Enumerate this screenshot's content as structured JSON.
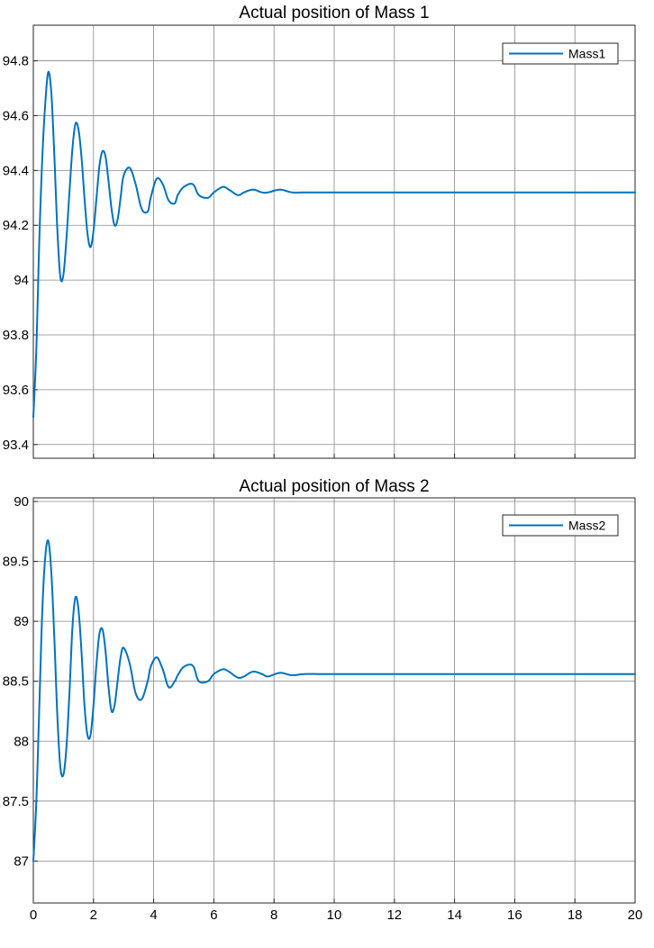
{
  "figure": {
    "background": "#ffffff",
    "axes_color": "#262626",
    "grid_color": "#888888",
    "line_color": "#0072BD"
  },
  "chart_data": [
    {
      "type": "line",
      "title": "Actual position of Mass 1",
      "xlabel": "",
      "ylabel": "",
      "xlim": [
        0,
        20
      ],
      "ylim": [
        93.35,
        94.93
      ],
      "grid": true,
      "legend_position": "top-right",
      "x_tick_labels": [],
      "y_ticks": [
        93.4,
        93.6,
        93.8,
        94,
        94.2,
        94.4,
        94.6,
        94.8
      ],
      "y_tick_labels": [
        "93.4",
        "93.6",
        "93.8",
        "94",
        "94.2",
        "94.4",
        "94.6",
        "94.8"
      ],
      "series": [
        {
          "name": "Mass1",
          "color": "#0072BD",
          "x": [
            0,
            0.1,
            0.2,
            0.3,
            0.4,
            0.5,
            0.6,
            0.7,
            0.8,
            0.9,
            1.0,
            1.1,
            1.2,
            1.3,
            1.4,
            1.5,
            1.6,
            1.7,
            1.8,
            1.9,
            2.0,
            2.1,
            2.2,
            2.3,
            2.4,
            2.5,
            2.6,
            2.7,
            2.8,
            2.9,
            3.0,
            3.2,
            3.4,
            3.6,
            3.8,
            3.9,
            4.1,
            4.3,
            4.5,
            4.7,
            4.8,
            5.0,
            5.3,
            5.5,
            5.8,
            6.0,
            6.3,
            6.5,
            6.8,
            7.0,
            7.3,
            7.6,
            7.8,
            8.2,
            8.6,
            9.0,
            9.5,
            10.0,
            10.5,
            11.0,
            12.0,
            14.0,
            16.0,
            18.0,
            20.0
          ],
          "values": [
            93.5,
            93.75,
            94.15,
            94.45,
            94.65,
            94.76,
            94.68,
            94.45,
            94.18,
            94.01,
            94.02,
            94.15,
            94.32,
            94.48,
            94.57,
            94.55,
            94.45,
            94.3,
            94.17,
            94.12,
            94.18,
            94.3,
            94.42,
            94.47,
            94.45,
            94.36,
            94.26,
            94.2,
            94.22,
            94.3,
            94.38,
            94.41,
            94.35,
            94.26,
            94.25,
            94.3,
            94.37,
            94.35,
            94.29,
            94.28,
            94.31,
            94.34,
            94.35,
            94.31,
            94.3,
            94.32,
            94.34,
            94.33,
            94.31,
            94.32,
            94.33,
            94.32,
            94.32,
            94.33,
            94.32,
            94.32,
            94.32,
            94.32,
            94.32,
            94.32,
            94.32,
            94.32,
            94.32,
            94.32,
            94.32
          ]
        }
      ]
    },
    {
      "type": "line",
      "title": "Actual position of Mass 2",
      "xlabel": "",
      "ylabel": "",
      "xlim": [
        0,
        20
      ],
      "ylim": [
        86.65,
        90.03
      ],
      "grid": true,
      "legend_position": "top-right",
      "x_ticks": [
        0,
        2,
        4,
        6,
        8,
        10,
        12,
        14,
        16,
        18,
        20
      ],
      "x_tick_labels": [
        "0",
        "2",
        "4",
        "6",
        "8",
        "10",
        "12",
        "14",
        "16",
        "18",
        "20"
      ],
      "y_ticks": [
        87,
        87.5,
        88,
        88.5,
        89,
        89.5,
        90
      ],
      "y_tick_labels": [
        "87",
        "87.5",
        "88",
        "88.5",
        "89",
        "89.5",
        "90"
      ],
      "series": [
        {
          "name": "Mass2",
          "color": "#0072BD",
          "x": [
            0,
            0.1,
            0.2,
            0.3,
            0.4,
            0.5,
            0.6,
            0.7,
            0.8,
            0.9,
            1.0,
            1.1,
            1.2,
            1.3,
            1.4,
            1.5,
            1.6,
            1.7,
            1.8,
            1.9,
            2.0,
            2.1,
            2.2,
            2.3,
            2.4,
            2.5,
            2.6,
            2.7,
            2.8,
            2.9,
            3.0,
            3.2,
            3.4,
            3.6,
            3.8,
            3.9,
            4.1,
            4.3,
            4.5,
            4.7,
            4.8,
            5.0,
            5.3,
            5.5,
            5.8,
            6.0,
            6.3,
            6.5,
            6.8,
            7.0,
            7.3,
            7.6,
            7.8,
            8.2,
            8.6,
            9.0,
            9.5,
            10.0,
            10.5,
            11.0,
            12.0,
            14.0,
            16.0,
            18.0,
            20.0
          ],
          "values": [
            87.0,
            87.5,
            88.3,
            89.1,
            89.55,
            89.67,
            89.4,
            88.85,
            88.2,
            87.78,
            87.72,
            87.95,
            88.4,
            88.95,
            89.2,
            89.1,
            88.75,
            88.3,
            88.05,
            88.05,
            88.3,
            88.65,
            88.9,
            88.93,
            88.75,
            88.45,
            88.25,
            88.3,
            88.5,
            88.7,
            88.78,
            88.65,
            88.4,
            88.35,
            88.5,
            88.62,
            88.7,
            88.6,
            88.45,
            88.5,
            88.55,
            88.62,
            88.63,
            88.5,
            88.5,
            88.56,
            88.6,
            88.58,
            88.53,
            88.54,
            88.58,
            88.56,
            88.54,
            88.57,
            88.55,
            88.56,
            88.56,
            88.56,
            88.56,
            88.56,
            88.56,
            88.56,
            88.56,
            88.56,
            88.56
          ]
        }
      ]
    }
  ]
}
